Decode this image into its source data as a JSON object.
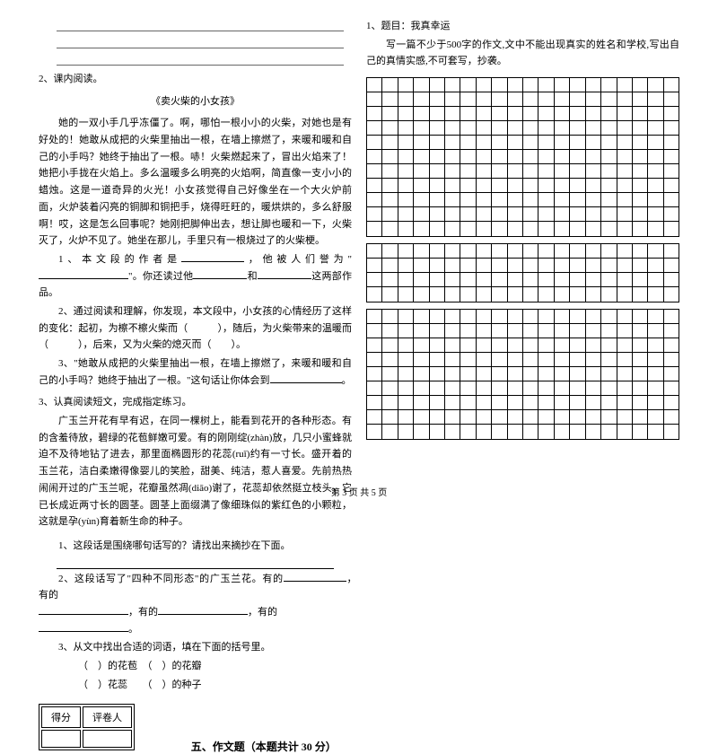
{
  "left": {
    "q2": "2、课内阅读。",
    "story_title": "《卖火柴的小女孩》",
    "story_p1": "她的一双小手几乎冻僵了。啊，哪怕一根小小的火柴，对她也是有好处的！她敢从成把的火柴里抽出一根，在墙上擦燃了，来暖和暖和自己的小手吗？她终于抽出了一根。哧！火柴燃起来了，冒出火焰来了！她把小手拢在火焰上。多么温暖多么明亮的火焰啊，简直像一支小小的蜡烛。这是一道奇异的火光！小女孩觉得自己好像坐在一个大火炉前面，火炉装着闪亮的铜脚和铜把手，烧得旺旺的，暖烘烘的，多么舒服啊！哎，这是怎么回事呢？她刚把脚伸出去，想让脚也暖和一下，火柴灭了，火炉不见了。她坐在那儿，手里只有一根烧过了的火柴梗。",
    "q2_1a": "1、本文段的作者是",
    "q2_1b": "，他被人们誉为\"",
    "q2_1c": "\"。你还读过他",
    "q2_1d": "和",
    "q2_1e": "这两部作品。",
    "q2_2": "2、通过阅读和理解，你发现，本文段中，小女孩的心情经历了这样的变化：起初，为檫不檫火柴而（　　　），随后，为火柴带来的温暖而（　　　），后来，又为火柴的熄灭而（　　）。",
    "q2_3": "3、\"她敢从成把的火柴里抽出一根，在墙上擦燃了，来暖和暖和自己的小手吗？她终于抽出了一根。\"这句话让你体会到",
    "q3": "3、认真阅读短文，完成指定练习。",
    "story2": "广玉兰开花有早有迟，在同一棵树上，能看到花开的各种形态。有的含羞待放，碧绿的花苞鲜嫩可爱。有的刚刚绽(zhàn)放，几只小蜜蜂就迫不及待地钻了进去，那里面椭圆形的花蕊(ruǐ)约有一寸长。盛开着的玉兰花，洁白柔嫩得像婴儿的笑脸，甜美、纯洁，惹人喜爱。先前热热闹闹开过的广玉兰呢，花瓣虽然凋(diāo)谢了，花蕊却依然挺立枝头，它已长成近两寸长的圆茎。圆茎上面缀满了像细珠似的紫红色的小颗粒，这就是孕(yùn)育着新生命的种子。",
    "q3_1": "1、这段话是围绕哪句话写的？请找出来摘抄在下面。",
    "q3_2a": "2、这段话写了\"四种不同形态\"的广玉兰花。有的",
    "q3_2b": "，　　　　有的",
    "q3_2c": "，有的",
    "q3_2d": "，有的",
    "q3_3": "3、从文中找出合适的词语，填在下面的括号里。",
    "q3_3a": "（　）的花苞　（　）的花瓣",
    "q3_3b": "（　）花蕊　　（　）的种子",
    "score_label1": "得分",
    "score_label2": "评卷人",
    "section5": "五、作文题（本题共计 30 分）"
  },
  "right": {
    "q1": "1、题目：我真幸运",
    "q1_desc": "写一篇不少于500字的作文,文中不能出现真实的姓名和学校,写出自己的真情实感,不可套写，抄袭。"
  },
  "grid": {
    "cols": 20,
    "block1_rows": 11,
    "block2_rows": 4,
    "block3_rows": 9
  },
  "footer": "第 3 页  共 5 页"
}
